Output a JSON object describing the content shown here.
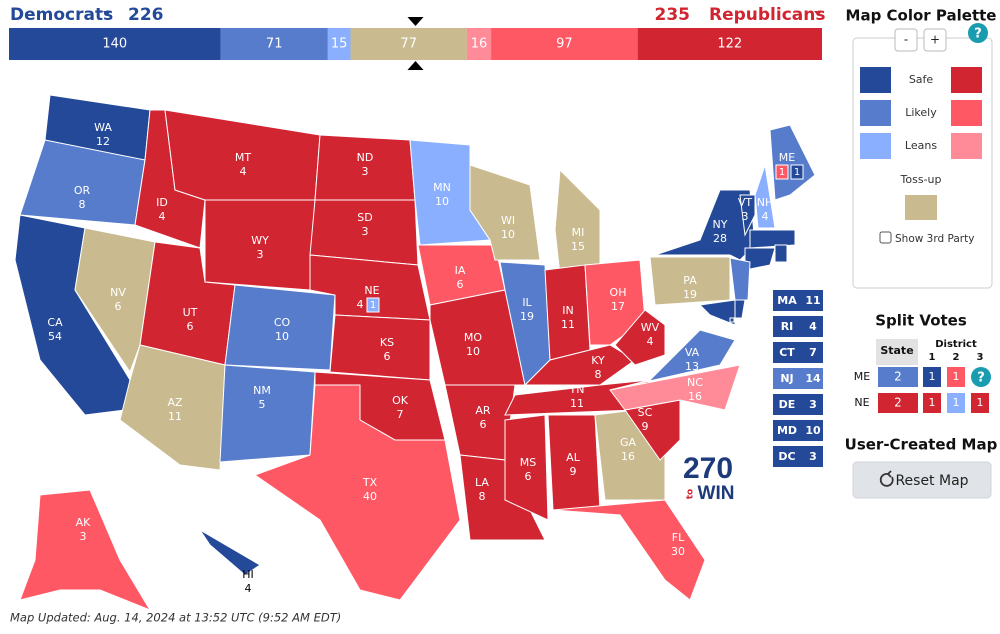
{
  "colors": {
    "safe_d": "#244999",
    "likely_d": "#577ccc",
    "leans_d": "#8aafff",
    "tossup": "#c9ba8f",
    "leans_r": "#ff8b98",
    "likely_r": "#ff5865",
    "safe_r": "#d22532"
  },
  "header": {
    "dem_label": "Democrats",
    "dem_total": "226",
    "rep_total": "235",
    "rep_label": "Republicans"
  },
  "bar": [
    {
      "value": 140,
      "rating": "safe_d"
    },
    {
      "value": 71,
      "rating": "likely_d"
    },
    {
      "value": 15,
      "rating": "leans_d"
    },
    {
      "value": 77,
      "rating": "tossup"
    },
    {
      "value": 16,
      "rating": "leans_r"
    },
    {
      "value": 97,
      "rating": "likely_r"
    },
    {
      "value": 122,
      "rating": "safe_r"
    }
  ],
  "states": [
    {
      "abbr": "WA",
      "ev": 12,
      "rating": "safe_d"
    },
    {
      "abbr": "OR",
      "ev": 8,
      "rating": "likely_d"
    },
    {
      "abbr": "CA",
      "ev": 54,
      "rating": "safe_d"
    },
    {
      "abbr": "NV",
      "ev": 6,
      "rating": "tossup"
    },
    {
      "abbr": "ID",
      "ev": 4,
      "rating": "safe_r"
    },
    {
      "abbr": "MT",
      "ev": 4,
      "rating": "safe_r"
    },
    {
      "abbr": "WY",
      "ev": 3,
      "rating": "safe_r"
    },
    {
      "abbr": "UT",
      "ev": 6,
      "rating": "safe_r"
    },
    {
      "abbr": "AZ",
      "ev": 11,
      "rating": "tossup"
    },
    {
      "abbr": "CO",
      "ev": 10,
      "rating": "likely_d"
    },
    {
      "abbr": "NM",
      "ev": 5,
      "rating": "likely_d"
    },
    {
      "abbr": "ND",
      "ev": 3,
      "rating": "safe_r"
    },
    {
      "abbr": "SD",
      "ev": 3,
      "rating": "safe_r"
    },
    {
      "abbr": "NE",
      "ev": 4,
      "rating": "safe_r",
      "districts": [
        {
          "ev": 1,
          "rating": "leans_d"
        }
      ]
    },
    {
      "abbr": "KS",
      "ev": 6,
      "rating": "safe_r"
    },
    {
      "abbr": "OK",
      "ev": 7,
      "rating": "safe_r"
    },
    {
      "abbr": "TX",
      "ev": 40,
      "rating": "likely_r"
    },
    {
      "abbr": "MN",
      "ev": 10,
      "rating": "leans_d"
    },
    {
      "abbr": "IA",
      "ev": 6,
      "rating": "likely_r"
    },
    {
      "abbr": "MO",
      "ev": 10,
      "rating": "safe_r"
    },
    {
      "abbr": "AR",
      "ev": 6,
      "rating": "safe_r"
    },
    {
      "abbr": "LA",
      "ev": 8,
      "rating": "safe_r"
    },
    {
      "abbr": "WI",
      "ev": 10,
      "rating": "tossup"
    },
    {
      "abbr": "IL",
      "ev": 19,
      "rating": "likely_d"
    },
    {
      "abbr": "MI",
      "ev": 15,
      "rating": "tossup"
    },
    {
      "abbr": "IN",
      "ev": 11,
      "rating": "safe_r"
    },
    {
      "abbr": "OH",
      "ev": 17,
      "rating": "likely_r"
    },
    {
      "abbr": "KY",
      "ev": 8,
      "rating": "safe_r"
    },
    {
      "abbr": "TN",
      "ev": 11,
      "rating": "safe_r"
    },
    {
      "abbr": "MS",
      "ev": 6,
      "rating": "safe_r"
    },
    {
      "abbr": "AL",
      "ev": 9,
      "rating": "safe_r"
    },
    {
      "abbr": "GA",
      "ev": 16,
      "rating": "tossup"
    },
    {
      "abbr": "FL",
      "ev": 30,
      "rating": "likely_r"
    },
    {
      "abbr": "SC",
      "ev": 9,
      "rating": "safe_r"
    },
    {
      "abbr": "NC",
      "ev": 16,
      "rating": "leans_r"
    },
    {
      "abbr": "VA",
      "ev": 13,
      "rating": "likely_d"
    },
    {
      "abbr": "WV",
      "ev": 4,
      "rating": "safe_r"
    },
    {
      "abbr": "PA",
      "ev": 19,
      "rating": "tossup"
    },
    {
      "abbr": "NY",
      "ev": 28,
      "rating": "safe_d"
    },
    {
      "abbr": "VT",
      "ev": 3,
      "rating": "safe_d"
    },
    {
      "abbr": "NH",
      "ev": 4,
      "rating": "leans_d"
    },
    {
      "abbr": "ME",
      "ev": 2,
      "rating": "likely_d",
      "districts": [
        {
          "ev": 1,
          "rating": "likely_r"
        },
        {
          "ev": 1,
          "rating": "safe_d"
        }
      ]
    },
    {
      "abbr": "AK",
      "ev": 3,
      "rating": "likely_r"
    },
    {
      "abbr": "HI",
      "ev": 4,
      "rating": "safe_d"
    }
  ],
  "small_states": [
    {
      "abbr": "MA",
      "ev": 11,
      "rating": "safe_d"
    },
    {
      "abbr": "RI",
      "ev": 4,
      "rating": "safe_d"
    },
    {
      "abbr": "CT",
      "ev": 7,
      "rating": "safe_d"
    },
    {
      "abbr": "NJ",
      "ev": 14,
      "rating": "likely_d"
    },
    {
      "abbr": "DE",
      "ev": 3,
      "rating": "safe_d"
    },
    {
      "abbr": "MD",
      "ev": 10,
      "rating": "safe_d"
    },
    {
      "abbr": "DC",
      "ev": 3,
      "rating": "safe_d"
    }
  ],
  "logo": {
    "number": "270",
    "to": "to",
    "win": "WIN"
  },
  "palette": {
    "title": "Map Color Palette",
    "minus": "-",
    "plus": "+",
    "help": "?",
    "rows": [
      {
        "label": "Safe",
        "dem": "safe_d",
        "rep": "safe_r"
      },
      {
        "label": "Likely",
        "dem": "likely_d",
        "rep": "likely_r"
      },
      {
        "label": "Leans",
        "dem": "leans_d",
        "rep": "leans_r"
      }
    ],
    "tossup_label": "Toss-up",
    "tossup": "tossup",
    "third_party_label": "Show 3rd Party"
  },
  "split_votes": {
    "title": "Split Votes",
    "state_header": "State",
    "district_header": "District",
    "district_numbers": [
      "1",
      "2",
      "3"
    ],
    "help": "?",
    "rows": [
      {
        "state": "ME",
        "state_ev": 2,
        "state_rating": "likely_d",
        "districts": [
          {
            "ev": 1,
            "rating": "safe_d"
          },
          {
            "ev": 1,
            "rating": "likely_r"
          }
        ]
      },
      {
        "state": "NE",
        "state_ev": 2,
        "state_rating": "safe_r",
        "districts": [
          {
            "ev": 1,
            "rating": "safe_r"
          },
          {
            "ev": 1,
            "rating": "leans_d"
          },
          {
            "ev": 1,
            "rating": "safe_r"
          }
        ]
      }
    ]
  },
  "user_map": {
    "title": "User-Created Map",
    "reset": "Reset Map"
  },
  "footer": "Map Updated: Aug. 14, 2024 at 13:52 UTC (9:52 AM EDT)"
}
